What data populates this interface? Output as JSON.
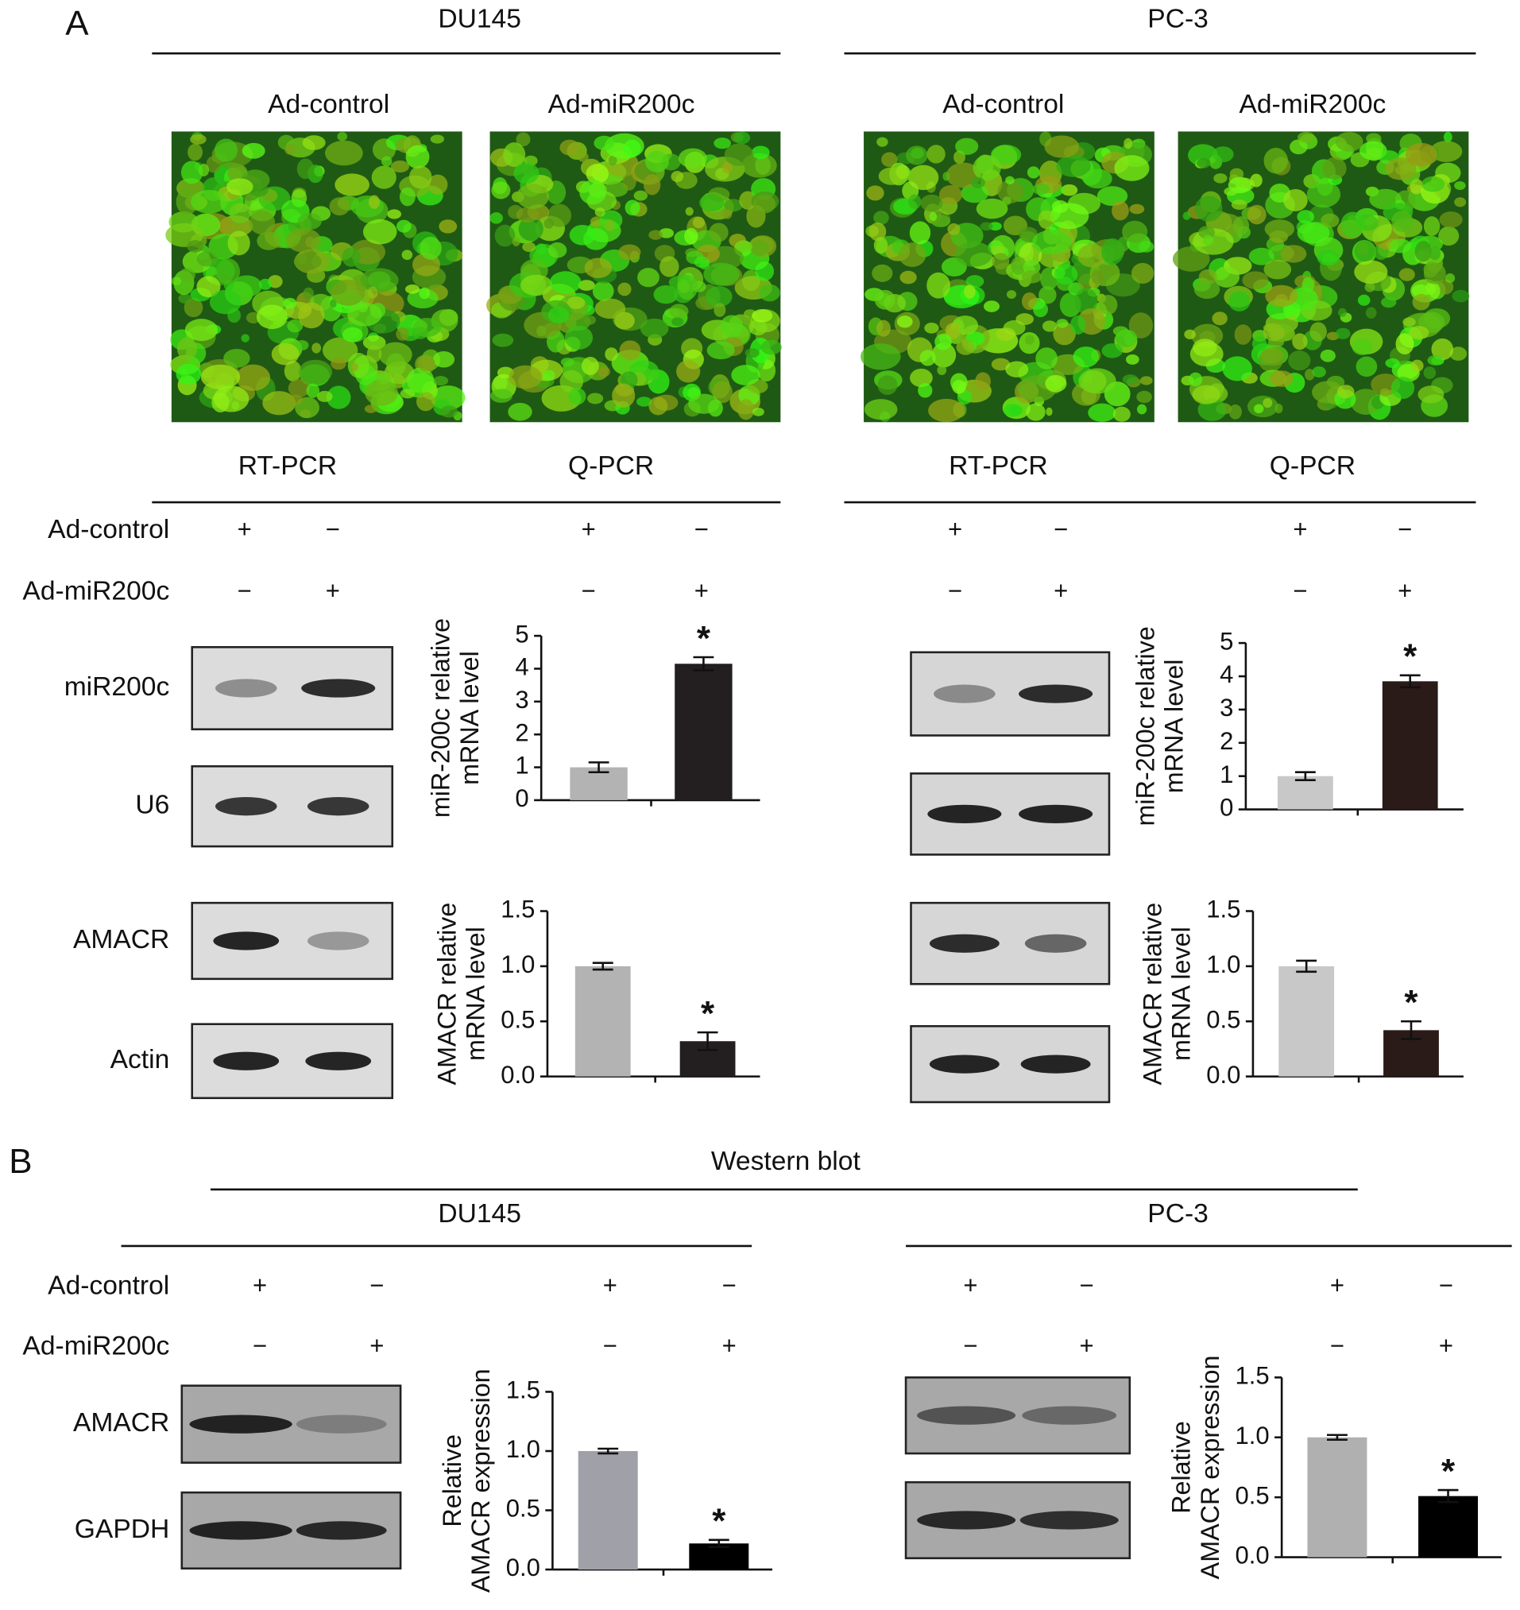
{
  "figure": {
    "panel_a": "A",
    "panel_b": "B",
    "western_title": "Western blot",
    "a_rows": [
      "Ad-control",
      "Ad-miR200c"
    ],
    "a_groups": [
      {
        "cell_line": "DU145",
        "images": [
          "Ad-control",
          "Ad-miR200c"
        ],
        "assays": [
          "RT-PCR",
          "Q-PCR"
        ],
        "signs": [
          [
            "+",
            "−",
            "+",
            "−"
          ],
          [
            "−",
            "+",
            "−",
            "+"
          ]
        ],
        "gels": [
          "miR200c",
          "U6",
          "AMACR",
          "Actin"
        ]
      },
      {
        "cell_line": "PC-3",
        "images": [
          "Ad-control",
          "Ad-miR200c"
        ],
        "assays": [
          "RT-PCR",
          "Q-PCR"
        ],
        "signs": [
          [
            "+",
            "−",
            "+",
            "−"
          ],
          [
            "−",
            "+",
            "−",
            "+"
          ]
        ]
      }
    ],
    "b_rows": [
      "Ad-control",
      "Ad-miR200c"
    ],
    "b_groups": [
      {
        "cell_line": "DU145",
        "signs": [
          [
            "+",
            "−",
            "+",
            "−"
          ],
          [
            "−",
            "+",
            "−",
            "+"
          ]
        ],
        "gels": [
          "AMACR",
          "GAPDH"
        ]
      },
      {
        "cell_line": "PC-3",
        "signs": [
          [
            "+",
            "−",
            "+",
            "−"
          ],
          [
            "−",
            "+",
            "−",
            "+"
          ]
        ]
      }
    ]
  },
  "chart_data": [
    {
      "type": "bar",
      "ylabel": [
        "miR-200c relative",
        "mRNA level"
      ],
      "categories": [
        null,
        null
      ],
      "values": [
        1.0,
        4.15
      ],
      "errors": [
        0.15,
        0.2
      ],
      "colors": [
        "#b3b3b3",
        "#231f20"
      ],
      "annotations": [
        null,
        "*"
      ],
      "ylim": [
        0,
        5
      ],
      "yticks": [
        0,
        1,
        2,
        3,
        4,
        5
      ]
    },
    {
      "type": "bar",
      "ylabel": [
        "miR-200c relative",
        "mRNA level"
      ],
      "categories": [
        null,
        null
      ],
      "values": [
        1.0,
        3.85
      ],
      "errors": [
        0.12,
        0.18
      ],
      "colors": [
        "#c8c8c8",
        "#2a1a18"
      ],
      "annotations": [
        null,
        "*"
      ],
      "ylim": [
        0,
        5
      ],
      "yticks": [
        0,
        1,
        2,
        3,
        4,
        5
      ]
    },
    {
      "type": "bar",
      "ylabel": [
        "AMACR relative",
        "mRNA level"
      ],
      "categories": [
        null,
        null
      ],
      "values": [
        1.0,
        0.32
      ],
      "errors": [
        0.03,
        0.08
      ],
      "colors": [
        "#b3b3b3",
        "#231f20"
      ],
      "annotations": [
        null,
        "*"
      ],
      "ylim": [
        0,
        1.5
      ],
      "yticks": [
        {
          "value": 0,
          "label": "0.0"
        },
        {
          "value": 0.5,
          "label": "0.5"
        },
        {
          "value": 1,
          "label": "1.0"
        },
        {
          "value": 1.5,
          "label": "1.5"
        }
      ]
    },
    {
      "type": "bar",
      "ylabel": [
        "AMACR relative",
        "mRNA level"
      ],
      "categories": [
        null,
        null
      ],
      "values": [
        1.0,
        0.42
      ],
      "errors": [
        0.05,
        0.08
      ],
      "colors": [
        "#c8c8c8",
        "#2a1a18"
      ],
      "annotations": [
        null,
        "*"
      ],
      "ylim": [
        0,
        1.5
      ],
      "yticks": [
        {
          "value": 0,
          "label": "0.0"
        },
        {
          "value": 0.5,
          "label": "0.5"
        },
        {
          "value": 1,
          "label": "1.0"
        },
        {
          "value": 1.5,
          "label": "1.5"
        }
      ]
    },
    {
      "type": "bar",
      "ylabel": [
        "Relative",
        "AMACR expression"
      ],
      "categories": [
        null,
        null
      ],
      "values": [
        1.0,
        0.22
      ],
      "errors": [
        0.02,
        0.03
      ],
      "colors": [
        "#a0a0a8",
        "#000000"
      ],
      "annotations": [
        null,
        "*"
      ],
      "ylim": [
        0,
        1.5
      ],
      "yticks": [
        {
          "value": 0,
          "label": "0.0"
        },
        {
          "value": 0.5,
          "label": "0.5"
        },
        {
          "value": 1,
          "label": "1.0"
        },
        {
          "value": 1.5,
          "label": "1.5"
        }
      ]
    },
    {
      "type": "bar",
      "ylabel": [
        "Relative",
        "AMACR expression"
      ],
      "categories": [
        null,
        null
      ],
      "values": [
        1.0,
        0.51
      ],
      "errors": [
        0.02,
        0.05
      ],
      "colors": [
        "#b0b0b0",
        "#000000"
      ],
      "annotations": [
        null,
        "*"
      ],
      "ylim": [
        0,
        1.5
      ],
      "yticks": [
        {
          "value": 0,
          "label": "0.0"
        },
        {
          "value": 0.5,
          "label": "0.5"
        },
        {
          "value": 1,
          "label": "1.0"
        },
        {
          "value": 1.5,
          "label": "1.5"
        }
      ]
    }
  ]
}
